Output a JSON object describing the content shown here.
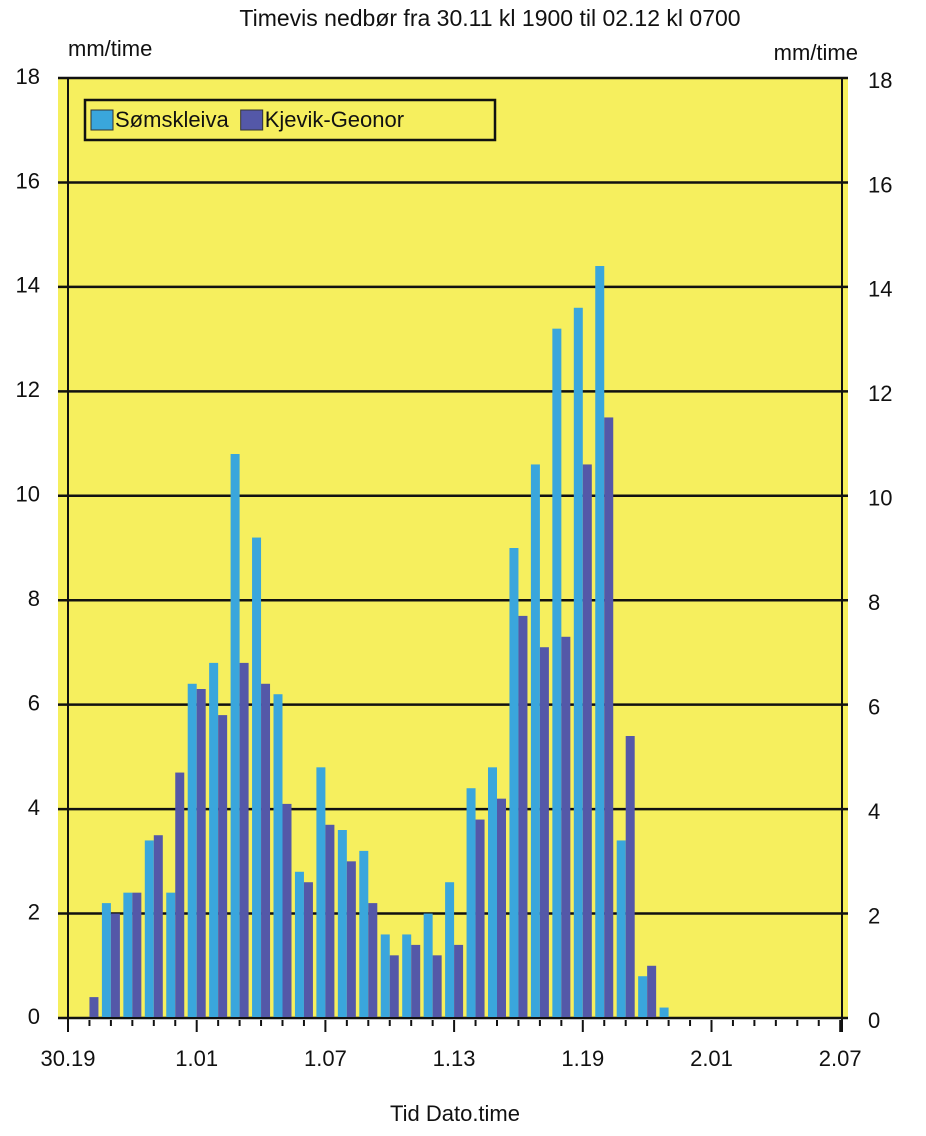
{
  "chart_data": {
    "type": "bar",
    "title": "Timevis nedbør fra  30.11 kl 1900 til 02.12 kl 0700",
    "ylabel": "mm/time",
    "y2label": "mm/time",
    "xlabel": "Tid  Dato.time",
    "categories": [
      "30.19",
      null,
      null,
      null,
      null,
      null,
      "1.01",
      null,
      null,
      null,
      null,
      null,
      "1.07",
      null,
      null,
      null,
      null,
      null,
      "1.13",
      null,
      null,
      null,
      null,
      null,
      "1.19",
      null,
      null,
      null,
      null,
      null,
      "2.01",
      null,
      null,
      null,
      null,
      null,
      "2.07"
    ],
    "series": [
      {
        "name": "Sømskleiva",
        "color": "#3aa6dc",
        "values": [
          0,
          0,
          2.2,
          2.4,
          3.4,
          2.4,
          6.4,
          6.8,
          10.8,
          9.2,
          6.2,
          2.8,
          4.8,
          3.6,
          3.2,
          1.6,
          1.6,
          2.0,
          2.6,
          4.4,
          4.8,
          9.0,
          10.6,
          13.2,
          13.6,
          14.4,
          3.4,
          0.8,
          0.2,
          0,
          0,
          0,
          0,
          0,
          0,
          0,
          0
        ]
      },
      {
        "name": "Kjevik-Geonor",
        "color": "#5458a8",
        "values": [
          0,
          0.4,
          2.0,
          2.4,
          3.5,
          4.7,
          6.3,
          5.8,
          6.8,
          6.4,
          4.1,
          2.6,
          3.7,
          3.0,
          2.2,
          1.2,
          1.4,
          1.2,
          1.4,
          3.8,
          4.2,
          7.7,
          7.1,
          7.3,
          10.6,
          11.5,
          5.4,
          1.0,
          0,
          0,
          0,
          0,
          0,
          0,
          0,
          0,
          0
        ]
      }
    ],
    "ylim": [
      0,
      18
    ],
    "yticks": [
      0,
      2,
      4,
      6,
      8,
      10,
      12,
      14,
      16,
      18
    ],
    "grid": true,
    "background": "#f6ef5e",
    "legend": "top-left"
  }
}
